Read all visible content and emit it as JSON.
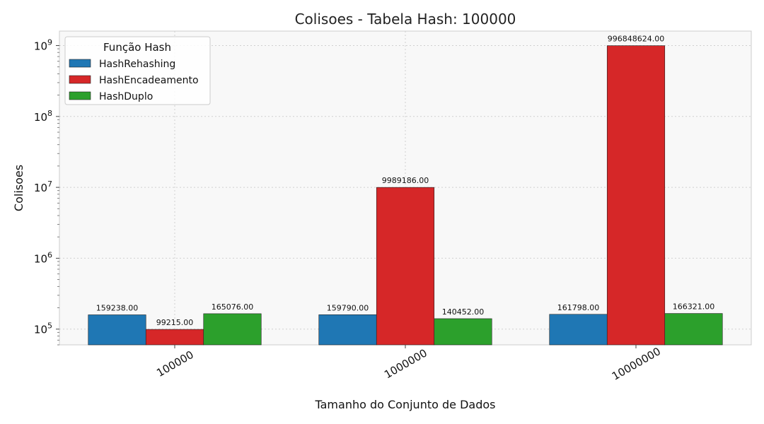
{
  "chart_data": {
    "type": "bar",
    "title": "Colisoes - Tabela Hash: 100000",
    "xlabel": "Tamanho do Conjunto de Dados",
    "ylabel": "Colisoes",
    "yscale": "log",
    "ylim": [
      60000,
      1600000000
    ],
    "yticks": [
      {
        "value": 100000,
        "base": "10",
        "exp": "5"
      },
      {
        "value": 1000000,
        "base": "10",
        "exp": "6"
      },
      {
        "value": 10000000,
        "base": "10",
        "exp": "7"
      },
      {
        "value": 100000000,
        "base": "10",
        "exp": "8"
      },
      {
        "value": 1000000000,
        "base": "10",
        "exp": "9"
      }
    ],
    "categories": [
      "100000",
      "1000000",
      "10000000"
    ],
    "series": [
      {
        "name": "HashRehashing",
        "color": "#1f77b4",
        "values": [
          159238,
          159790,
          161798
        ],
        "labels": [
          "159238.00",
          "159790.00",
          "161798.00"
        ]
      },
      {
        "name": "HashEncadeamento",
        "color": "#d62728",
        "values": [
          99215,
          9989186,
          996848624
        ],
        "labels": [
          "99215.00",
          "9989186.00",
          "996848624.00"
        ]
      },
      {
        "name": "HashDuplo",
        "color": "#2ca02c",
        "values": [
          165076,
          140452,
          166321
        ],
        "labels": [
          "165076.00",
          "140452.00",
          "166321.00"
        ]
      }
    ],
    "legend": {
      "title": "Função Hash",
      "position": "top-left"
    },
    "grid": true
  }
}
